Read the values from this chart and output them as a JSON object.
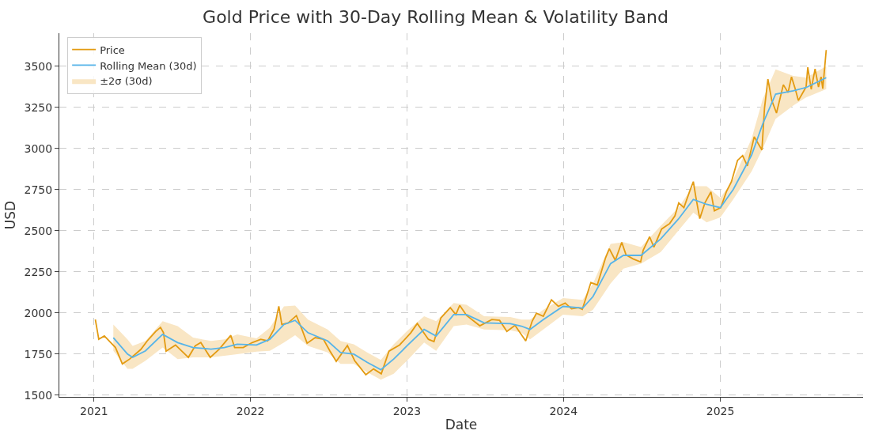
{
  "chart_data": {
    "type": "line",
    "title": "Gold Price with 30-Day Rolling Mean & Volatility Band",
    "xlabel": "Date",
    "ylabel": "USD",
    "xlim": [
      "2020-10-12",
      "2025-11-30"
    ],
    "ylim": [
      1490,
      3700
    ],
    "xticks": [
      {
        "value": "2021-01-01",
        "label": "2021"
      },
      {
        "value": "2022-01-01",
        "label": "2022"
      },
      {
        "value": "2023-01-01",
        "label": "2023"
      },
      {
        "value": "2024-01-01",
        "label": "2024"
      },
      {
        "value": "2025-01-01",
        "label": "2025"
      }
    ],
    "yticks": [
      1500,
      1750,
      2000,
      2250,
      2500,
      2750,
      3000,
      3250,
      3500
    ],
    "grid": true,
    "legend": "top left",
    "series": [
      {
        "name": "Price",
        "color": "#e39b12",
        "x": [
          "2021-01-04",
          "2021-01-12",
          "2021-01-25",
          "2021-02-05",
          "2021-02-20",
          "2021-03-08",
          "2021-03-25",
          "2021-04-20",
          "2021-05-05",
          "2021-05-25",
          "2021-06-05",
          "2021-06-12",
          "2021-06-18",
          "2021-07-10",
          "2021-08-09",
          "2021-08-25",
          "2021-09-07",
          "2021-09-29",
          "2021-10-20",
          "2021-11-16",
          "2021-11-25",
          "2021-12-15",
          "2022-01-05",
          "2022-01-25",
          "2022-02-10",
          "2022-02-25",
          "2022-03-08",
          "2022-03-15",
          "2022-03-30",
          "2022-04-18",
          "2022-05-01",
          "2022-05-13",
          "2022-06-01",
          "2022-06-20",
          "2022-07-05",
          "2022-07-20",
          "2022-08-15",
          "2022-09-01",
          "2022-09-27",
          "2022-10-15",
          "2022-11-02",
          "2022-11-20",
          "2022-12-15",
          "2023-01-10",
          "2023-01-25",
          "2023-02-20",
          "2023-03-05",
          "2023-03-21",
          "2023-04-12",
          "2023-04-25",
          "2023-05-04",
          "2023-05-20",
          "2023-06-20",
          "2023-07-18",
          "2023-08-05",
          "2023-08-22",
          "2023-09-10",
          "2023-10-05",
          "2023-10-20",
          "2023-10-30",
          "2023-11-15",
          "2023-12-04",
          "2023-12-20",
          "2024-01-05",
          "2024-01-20",
          "2024-02-05",
          "2024-02-14",
          "2024-03-05",
          "2024-03-20",
          "2024-04-08",
          "2024-04-17",
          "2024-05-01",
          "2024-05-16",
          "2024-05-26",
          "2024-06-11",
          "2024-06-29",
          "2024-07-05",
          "2024-07-20",
          "2024-07-30",
          "2024-08-17",
          "2024-09-05",
          "2024-09-17",
          "2024-09-26",
          "2024-10-08",
          "2024-10-21",
          "2024-10-30",
          "2024-11-05",
          "2024-11-14",
          "2024-11-26",
          "2024-12-10",
          "2024-12-18",
          "2025-01-02",
          "2025-01-15",
          "2025-01-27",
          "2025-02-10",
          "2025-02-22",
          "2025-03-05",
          "2025-03-21",
          "2025-04-08",
          "2025-04-14",
          "2025-04-22",
          "2025-05-01",
          "2025-05-12",
          "2025-05-28",
          "2025-06-08",
          "2025-06-16",
          "2025-06-25",
          "2025-07-02",
          "2025-07-20",
          "2025-07-24",
          "2025-08-01",
          "2025-08-10",
          "2025-08-18",
          "2025-08-24",
          "2025-08-28",
          "2025-09-05"
        ],
        "values": [
          1960,
          1840,
          1860,
          1830,
          1790,
          1690,
          1720,
          1778,
          1830,
          1888,
          1912,
          1880,
          1768,
          1805,
          1730,
          1800,
          1820,
          1730,
          1780,
          1864,
          1790,
          1790,
          1820,
          1840,
          1830,
          1902,
          2041,
          1930,
          1940,
          1984,
          1900,
          1816,
          1850,
          1840,
          1770,
          1706,
          1802,
          1710,
          1625,
          1660,
          1630,
          1768,
          1806,
          1880,
          1936,
          1840,
          1826,
          1970,
          2032,
          1990,
          2046,
          1985,
          1922,
          1960,
          1955,
          1888,
          1925,
          1830,
          1950,
          1998,
          1980,
          2080,
          2040,
          2060,
          2025,
          2032,
          2022,
          2185,
          2170,
          2333,
          2390,
          2320,
          2429,
          2353,
          2329,
          2310,
          2381,
          2463,
          2400,
          2510,
          2544,
          2590,
          2669,
          2640,
          2736,
          2798,
          2702,
          2573,
          2669,
          2736,
          2621,
          2640,
          2736,
          2798,
          2927,
          2956,
          2894,
          3071,
          2990,
          3244,
          3421,
          3291,
          3215,
          3387,
          3339,
          3435,
          3359,
          3291,
          3373,
          3493,
          3359,
          3483,
          3373,
          3435,
          3363,
          3598
        ]
      },
      {
        "name": "Rolling Mean (30d)",
        "color": "#56b4e9",
        "x": [
          "2021-02-15",
          "2021-03-20",
          "2021-04-01",
          "2021-05-01",
          "2021-06-10",
          "2021-07-15",
          "2021-08-20",
          "2021-10-01",
          "2021-11-01",
          "2021-12-01",
          "2022-01-15",
          "2022-02-15",
          "2022-03-20",
          "2022-04-15",
          "2022-05-15",
          "2022-06-30",
          "2022-07-30",
          "2022-08-30",
          "2022-09-30",
          "2022-11-01",
          "2022-12-01",
          "2023-01-01",
          "2023-02-10",
          "2023-03-10",
          "2023-04-20",
          "2023-05-20",
          "2023-06-30",
          "2023-08-30",
          "2023-09-25",
          "2023-10-15",
          "2023-11-15",
          "2023-12-31",
          "2024-02-15",
          "2024-03-10",
          "2024-04-20",
          "2024-05-20",
          "2024-06-30",
          "2024-08-15",
          "2024-09-25",
          "2024-10-30",
          "2024-11-30",
          "2025-01-01",
          "2025-01-31",
          "2025-03-15",
          "2025-04-10",
          "2025-05-10",
          "2025-06-20",
          "2025-07-20",
          "2025-09-05"
        ],
        "values": [
          1850,
          1750,
          1730,
          1770,
          1870,
          1820,
          1790,
          1780,
          1790,
          1810,
          1805,
          1840,
          1930,
          1955,
          1880,
          1830,
          1760,
          1750,
          1700,
          1655,
          1720,
          1800,
          1900,
          1860,
          1990,
          1990,
          1940,
          1935,
          1920,
          1900,
          1960,
          2040,
          2030,
          2100,
          2300,
          2350,
          2350,
          2450,
          2570,
          2690,
          2660,
          2640,
          2750,
          2960,
          3150,
          3330,
          3350,
          3370,
          3430
        ],
        "lower": [
          1770,
          1660,
          1660,
          1710,
          1790,
          1720,
          1730,
          1730,
          1740,
          1750,
          1765,
          1770,
          1820,
          1865,
          1800,
          1760,
          1690,
          1690,
          1640,
          1595,
          1630,
          1710,
          1820,
          1770,
          1920,
          1930,
          1900,
          1895,
          1880,
          1840,
          1900,
          1990,
          1980,
          2020,
          2180,
          2270,
          2300,
          2370,
          2500,
          2610,
          2550,
          2580,
          2690,
          2860,
          3000,
          3180,
          3260,
          3310,
          3360
        ],
        "upper": [
          1930,
          1840,
          1800,
          1830,
          1950,
          1920,
          1850,
          1830,
          1840,
          1870,
          1845,
          1910,
          2040,
          2045,
          1960,
          1900,
          1830,
          1810,
          1760,
          1715,
          1810,
          1890,
          1980,
          1950,
          2060,
          2050,
          1980,
          1975,
          1960,
          1960,
          2020,
          2090,
          2080,
          2180,
          2420,
          2430,
          2400,
          2530,
          2640,
          2770,
          2770,
          2700,
          2810,
          3060,
          3300,
          3480,
          3440,
          3430,
          3500
        ]
      },
      {
        "name": "±2σ (30d)",
        "type": "area",
        "color": "#f9e6c4"
      }
    ]
  }
}
